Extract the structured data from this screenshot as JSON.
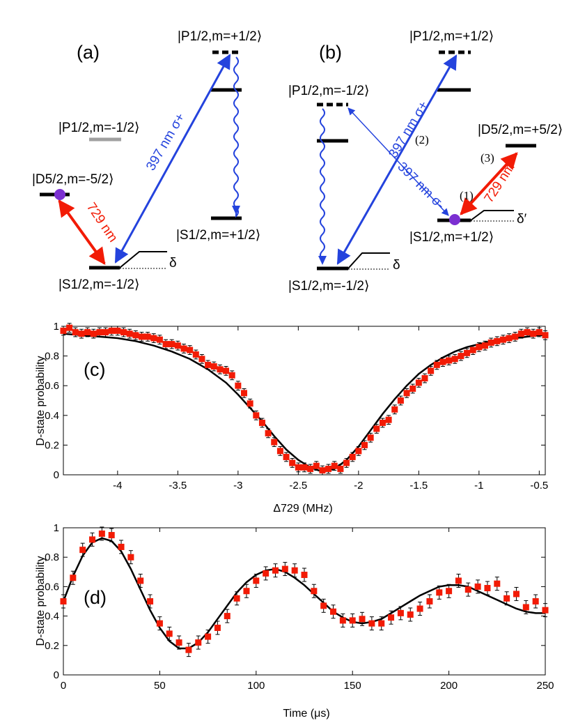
{
  "panels": {
    "a": "(a)",
    "b": "(b)",
    "c": "(c)",
    "d": "(d)"
  },
  "diagram": {
    "states": {
      "p_plus": "|P1/2,m=+1/2⟩",
      "p_minus": "|P1/2,m=-1/2⟩",
      "d_minus": "|D5/2,m=-5/2⟩",
      "d_plus": "|D5/2,m=+5/2⟩",
      "s_minus": "|S1/2,m=-1/2⟩",
      "s_plus": "|S1/2,m=+1/2⟩"
    },
    "beams": {
      "blue_plus": "397 nm σ+",
      "blue_minus": "397 nm σ-",
      "red": "729 nm"
    },
    "steps": [
      "(1)",
      "(2)",
      "(3)"
    ],
    "detuning": "δ",
    "detuning_prime": "δ′",
    "colors": {
      "blue": "#2443dd",
      "red": "#f21b05",
      "ion": "#7b2fd1",
      "grey_level": "#a0a0a0"
    }
  },
  "chart_data": [
    {
      "type": "scatter",
      "panel": "(c)",
      "xlabel": "Δ729 (MHz)",
      "ylabel": "D-state probability",
      "xlim": [
        -4.45,
        -0.45
      ],
      "ylim": [
        0,
        1
      ],
      "xticks": [
        -4,
        -3.5,
        -3,
        -2.5,
        -2,
        -1.5,
        -1,
        -0.5
      ],
      "yticks": [
        0,
        0.2,
        0.4,
        0.6,
        0.8,
        1
      ],
      "marker_color": "#f21b05",
      "line_color": "#000000",
      "series": [
        {
          "kind": "points",
          "x": [
            -4.45,
            -4.4,
            -4.35,
            -4.3,
            -4.25,
            -4.2,
            -4.15,
            -4.1,
            -4.05,
            -4.0,
            -3.95,
            -3.9,
            -3.85,
            -3.8,
            -3.75,
            -3.7,
            -3.65,
            -3.6,
            -3.55,
            -3.5,
            -3.45,
            -3.4,
            -3.35,
            -3.3,
            -3.25,
            -3.2,
            -3.15,
            -3.1,
            -3.05,
            -3.0,
            -2.95,
            -2.9,
            -2.85,
            -2.8,
            -2.75,
            -2.7,
            -2.65,
            -2.6,
            -2.55,
            -2.5,
            -2.45,
            -2.4,
            -2.35,
            -2.3,
            -2.25,
            -2.2,
            -2.15,
            -2.1,
            -2.05,
            -2.0,
            -1.95,
            -1.9,
            -1.85,
            -1.8,
            -1.75,
            -1.7,
            -1.65,
            -1.6,
            -1.55,
            -1.5,
            -1.45,
            -1.4,
            -1.35,
            -1.3,
            -1.25,
            -1.2,
            -1.15,
            -1.1,
            -1.05,
            -1.0,
            -0.95,
            -0.9,
            -0.85,
            -0.8,
            -0.75,
            -0.7,
            -0.65,
            -0.6,
            -0.55,
            -0.5,
            -0.45
          ],
          "y": [
            0.97,
            0.99,
            0.96,
            0.95,
            0.96,
            0.95,
            0.96,
            0.96,
            0.97,
            0.97,
            0.96,
            0.95,
            0.94,
            0.93,
            0.93,
            0.92,
            0.91,
            0.88,
            0.88,
            0.87,
            0.85,
            0.84,
            0.81,
            0.78,
            0.74,
            0.73,
            0.71,
            0.7,
            0.67,
            0.6,
            0.55,
            0.48,
            0.4,
            0.35,
            0.28,
            0.22,
            0.16,
            0.12,
            0.08,
            0.05,
            0.05,
            0.04,
            0.06,
            0.03,
            0.04,
            0.06,
            0.04,
            0.08,
            0.12,
            0.16,
            0.2,
            0.25,
            0.31,
            0.35,
            0.37,
            0.44,
            0.5,
            0.55,
            0.58,
            0.62,
            0.65,
            0.7,
            0.74,
            0.76,
            0.77,
            0.78,
            0.8,
            0.82,
            0.84,
            0.86,
            0.87,
            0.89,
            0.9,
            0.91,
            0.92,
            0.93,
            0.95,
            0.96,
            0.95,
            0.96,
            0.94
          ],
          "err": 0.03
        },
        {
          "kind": "fit",
          "x": [
            -4.45,
            -4.3,
            -4.15,
            -4.0,
            -3.85,
            -3.7,
            -3.55,
            -3.4,
            -3.25,
            -3.1,
            -3.0,
            -2.9,
            -2.8,
            -2.7,
            -2.6,
            -2.5,
            -2.4,
            -2.3,
            -2.2,
            -2.1,
            -2.0,
            -1.9,
            -1.8,
            -1.7,
            -1.6,
            -1.5,
            -1.4,
            -1.3,
            -1.2,
            -1.1,
            -1.0,
            -0.9,
            -0.8,
            -0.7,
            -0.6,
            -0.5,
            -0.45
          ],
          "y": [
            0.95,
            0.94,
            0.93,
            0.92,
            0.9,
            0.87,
            0.83,
            0.78,
            0.71,
            0.62,
            0.54,
            0.45,
            0.36,
            0.26,
            0.17,
            0.1,
            0.05,
            0.02,
            0.04,
            0.1,
            0.19,
            0.3,
            0.41,
            0.51,
            0.6,
            0.68,
            0.74,
            0.79,
            0.83,
            0.86,
            0.88,
            0.9,
            0.91,
            0.92,
            0.93,
            0.94,
            0.94
          ]
        }
      ]
    },
    {
      "type": "scatter",
      "panel": "(d)",
      "xlabel": "Time (μs)",
      "ylabel": "D-state probability",
      "xlim": [
        0,
        250
      ],
      "ylim": [
        0,
        1
      ],
      "xticks": [
        0,
        50,
        100,
        150,
        200,
        250
      ],
      "yticks": [
        0,
        0.2,
        0.4,
        0.6,
        0.8,
        1
      ],
      "marker_color": "#f21b05",
      "line_color": "#000000",
      "series": [
        {
          "kind": "points",
          "x": [
            0,
            5,
            10,
            15,
            20,
            25,
            30,
            35,
            40,
            45,
            50,
            55,
            60,
            65,
            70,
            75,
            80,
            85,
            90,
            95,
            100,
            105,
            110,
            115,
            120,
            125,
            130,
            135,
            140,
            145,
            150,
            155,
            160,
            165,
            170,
            175,
            180,
            185,
            190,
            195,
            200,
            205,
            210,
            215,
            220,
            225,
            230,
            235,
            240,
            245,
            250
          ],
          "y": [
            0.5,
            0.66,
            0.85,
            0.92,
            0.96,
            0.95,
            0.87,
            0.8,
            0.64,
            0.5,
            0.35,
            0.28,
            0.22,
            0.17,
            0.22,
            0.26,
            0.32,
            0.4,
            0.52,
            0.57,
            0.64,
            0.69,
            0.71,
            0.72,
            0.71,
            0.68,
            0.57,
            0.47,
            0.43,
            0.37,
            0.37,
            0.38,
            0.35,
            0.35,
            0.39,
            0.42,
            0.41,
            0.45,
            0.5,
            0.56,
            0.57,
            0.64,
            0.58,
            0.6,
            0.59,
            0.62,
            0.52,
            0.55,
            0.46,
            0.5,
            0.44
          ],
          "err": 0.045
        },
        {
          "kind": "fit",
          "x": [
            0,
            5,
            10,
            15,
            20,
            25,
            30,
            35,
            40,
            45,
            50,
            55,
            60,
            65,
            70,
            75,
            80,
            85,
            90,
            95,
            100,
            105,
            110,
            115,
            120,
            125,
            130,
            135,
            140,
            145,
            150,
            155,
            160,
            165,
            170,
            175,
            180,
            185,
            190,
            195,
            200,
            205,
            210,
            215,
            220,
            225,
            230,
            235,
            240,
            245,
            250
          ],
          "y": [
            0.5,
            0.67,
            0.81,
            0.9,
            0.93,
            0.91,
            0.84,
            0.72,
            0.58,
            0.44,
            0.32,
            0.23,
            0.18,
            0.18,
            0.22,
            0.29,
            0.38,
            0.47,
            0.56,
            0.63,
            0.68,
            0.71,
            0.72,
            0.7,
            0.66,
            0.61,
            0.55,
            0.49,
            0.43,
            0.39,
            0.36,
            0.35,
            0.36,
            0.38,
            0.42,
            0.46,
            0.5,
            0.54,
            0.57,
            0.6,
            0.61,
            0.61,
            0.6,
            0.57,
            0.54,
            0.51,
            0.48,
            0.45,
            0.43,
            0.42,
            0.42
          ]
        }
      ]
    }
  ]
}
